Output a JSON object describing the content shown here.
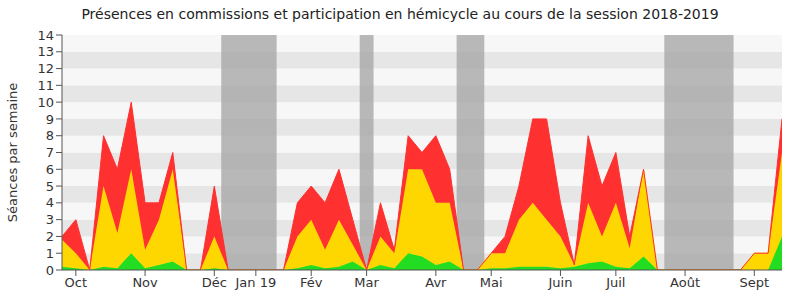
{
  "chart_data": {
    "type": "area",
    "title": "Présences en commissions et participation en hémicycle au cours de la session 2018-2019",
    "y_label": "Séances par semaine",
    "stacked": true,
    "grid": true,
    "x": [
      0,
      1,
      2,
      3,
      4,
      5,
      6,
      7,
      8,
      9,
      10,
      11,
      12,
      13,
      14,
      15,
      16,
      17,
      18,
      19,
      20,
      21,
      22,
      23,
      24,
      25,
      26,
      27,
      28,
      29,
      30,
      31,
      32,
      33,
      34,
      35,
      36,
      37,
      38,
      39,
      40,
      41,
      42,
      43,
      44,
      45,
      46,
      47,
      48,
      49,
      50,
      51,
      52
    ],
    "xlim": [
      0,
      52
    ],
    "xticks": [
      {
        "value": 1,
        "label": "Oct"
      },
      {
        "value": 6,
        "label": "Nov"
      },
      {
        "value": 11,
        "label": "Déc"
      },
      {
        "value": 14,
        "label": "Jan 19"
      },
      {
        "value": 18,
        "label": "Fév"
      },
      {
        "value": 22,
        "label": "Mar"
      },
      {
        "value": 27,
        "label": "Avr"
      },
      {
        "value": 31,
        "label": "Mai"
      },
      {
        "value": 36,
        "label": "Juin"
      },
      {
        "value": 40,
        "label": "Juil"
      },
      {
        "value": 45,
        "label": "Août"
      },
      {
        "value": 50,
        "label": "Sept"
      }
    ],
    "ylim": [
      0,
      14
    ],
    "yticks": [
      0,
      1,
      2,
      3,
      4,
      5,
      6,
      7,
      8,
      9,
      10,
      11,
      12,
      13,
      14
    ],
    "shaded_ranges": [
      {
        "from": 11.5,
        "to": 15.5
      },
      {
        "from": 21.5,
        "to": 22.5
      },
      {
        "from": 28.5,
        "to": 30.5
      },
      {
        "from": 43.5,
        "to": 48.5
      }
    ],
    "series": [
      {
        "color": "#22dd22",
        "values": [
          0.2,
          0.1,
          0,
          0.2,
          0.1,
          1,
          0.1,
          0.3,
          0.5,
          0,
          0,
          0.1,
          0,
          0,
          0,
          0,
          0,
          0.1,
          0.3,
          0.1,
          0.2,
          0.5,
          0,
          0.3,
          0.1,
          1,
          0.8,
          0.3,
          0.5,
          0,
          0,
          0.1,
          0.1,
          0.2,
          0.2,
          0.2,
          0.1,
          0.2,
          0.4,
          0.5,
          0.2,
          0.1,
          0.8,
          0,
          0,
          0,
          0,
          0,
          0,
          0,
          0,
          0,
          2
        ]
      },
      {
        "color": "#ffd700",
        "values": [
          1.6,
          0.9,
          0,
          4.8,
          2.1,
          5,
          1.1,
          2.7,
          5.5,
          0,
          0,
          1.9,
          0,
          0,
          0,
          0,
          0,
          1.9,
          2.7,
          1.1,
          2.8,
          1,
          0,
          1.7,
          0.9,
          5,
          5.2,
          3.7,
          3.5,
          0,
          0,
          0.9,
          0.9,
          2.8,
          3.8,
          2.8,
          1.9,
          0.1,
          3.6,
          1.5,
          3.8,
          1.2,
          5.2,
          0,
          0,
          0,
          0,
          0,
          0,
          0,
          1,
          1,
          5
        ]
      },
      {
        "color": "#ff3030",
        "values": [
          0.2,
          2,
          0,
          3,
          3.8,
          4,
          2.8,
          1,
          1,
          0,
          0,
          3,
          0,
          0,
          0,
          0,
          0,
          2,
          2,
          2.8,
          3,
          1.5,
          0,
          2,
          0.2,
          2,
          1,
          4,
          2,
          0,
          0,
          0,
          1,
          2,
          5,
          6,
          2,
          0,
          4,
          3,
          3,
          0.7,
          0,
          0,
          0,
          0,
          0,
          0,
          0,
          0,
          0,
          0,
          2
        ]
      }
    ]
  }
}
